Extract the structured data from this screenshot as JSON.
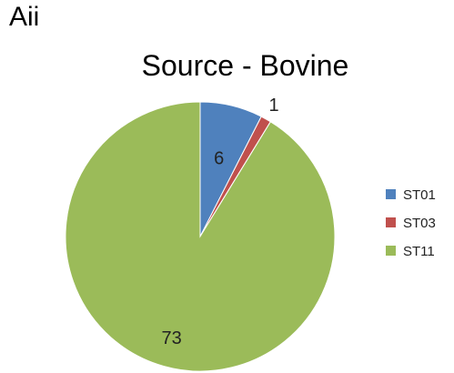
{
  "panel_label": "Aii",
  "chart_data": {
    "type": "pie",
    "title": "Source - Bovine",
    "categories": [
      "ST01",
      "ST03",
      "ST11"
    ],
    "values": [
      6,
      1,
      73
    ],
    "data_labels": [
      "6",
      "1",
      "73"
    ],
    "colors": [
      "#4f81bd",
      "#c0504d",
      "#9bbb59"
    ],
    "legend_placement": "right",
    "start_angle_deg": 0,
    "direction": "clockwise"
  }
}
